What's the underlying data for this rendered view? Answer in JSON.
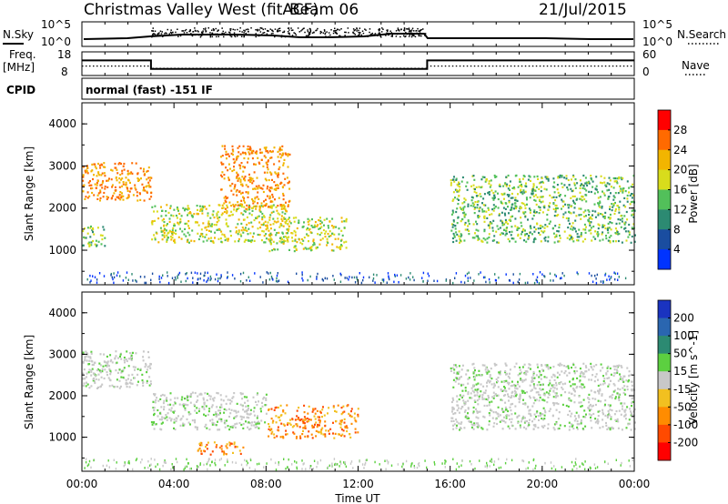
{
  "header": {
    "title": "Christmas Valley West (fitACF)",
    "beam": "Beam 06",
    "date": "21/Jul/2015"
  },
  "status_panel": {
    "nsky_label": "N.Sky",
    "nsearch_label": "N.Search",
    "noise_tick_hi": "10^5",
    "noise_tick_lo": "10^0",
    "freq_label_1": "Freq.",
    "freq_label_2": "[MHz]",
    "freq_ticks": [
      "18",
      "8"
    ],
    "nave_label": "Nave",
    "nave_ticks": [
      "60",
      "0"
    ],
    "cpid_label": "CPID",
    "cpid_text": "normal (fast) -151 IF",
    "freq_mhz_segments": [
      {
        "from": "00:00",
        "to": "03:00",
        "value": 14.4
      },
      {
        "from": "03:00",
        "to": "15:00",
        "value": 10.8
      },
      {
        "from": "15:00",
        "to": "24:00",
        "value": 14.4
      }
    ],
    "nave_segments": [
      {
        "from": "00:00",
        "to": "03:00",
        "value": 24
      },
      {
        "from": "03:00",
        "to": "15:00",
        "value": 18
      },
      {
        "from": "15:00",
        "to": "24:00",
        "value": 24
      }
    ]
  },
  "chart_data": [
    {
      "type": "heatmap",
      "parameter": "Power",
      "ylabel": "Slant Range [km]",
      "ylim": [
        180,
        4500
      ],
      "yticks": [
        "1000",
        "2000",
        "3000",
        "4000"
      ],
      "xlim": [
        "00:00",
        "24:00"
      ],
      "colorbar_label": "Power [dB]",
      "colorbar_ticks": [
        "28",
        "24",
        "20",
        "16",
        "12",
        "8",
        "4"
      ],
      "colorbar_colors": [
        "#ff0000",
        "#ff6a00",
        "#f2b500",
        "#d8dc1c",
        "#52c05a",
        "#2c8a72",
        "#1a4da0",
        "#0033ff"
      ],
      "echo_regions": [
        {
          "from": "00:00",
          "to": "03:00",
          "range_km": [
            2200,
            3100
          ],
          "value_db": 22
        },
        {
          "from": "00:00",
          "to": "01:00",
          "range_km": [
            1100,
            1600
          ],
          "value_db": 12
        },
        {
          "from": "03:00",
          "to": "09:00",
          "range_km": [
            1200,
            2100
          ],
          "value_db": 18
        },
        {
          "from": "06:00",
          "to": "09:00",
          "range_km": [
            2000,
            3500
          ],
          "value_db": 22
        },
        {
          "from": "08:00",
          "to": "11:30",
          "range_km": [
            1000,
            1800
          ],
          "value_db": 18
        },
        {
          "from": "16:00",
          "to": "24:00",
          "range_km": [
            1200,
            2800
          ],
          "value_db": 12
        }
      ]
    },
    {
      "type": "heatmap",
      "parameter": "Velocity",
      "ylabel": "Slant Range [km]",
      "ylim": [
        180,
        4500
      ],
      "yticks": [
        "1000",
        "2000",
        "3000",
        "4000"
      ],
      "xlim": [
        "00:00",
        "24:00"
      ],
      "xticks": [
        "00:00",
        "04:00",
        "08:00",
        "12:00",
        "16:00",
        "20:00",
        "00:00"
      ],
      "xlabel": "Time UT",
      "colorbar_label": "Velocity [m s^-1]",
      "colorbar_ticks": [
        "200",
        "100",
        "50",
        "15",
        "-15",
        "-50",
        "-100",
        "-200"
      ],
      "colorbar_colors": [
        "#1a33c0",
        "#2a66b0",
        "#2c8a72",
        "#5cd040",
        "#c8c8c8",
        "#f2c020",
        "#ff8c00",
        "#ff4a00",
        "#ff0000"
      ],
      "echo_regions": [
        {
          "from": "00:00",
          "to": "03:00",
          "range_km": [
            2200,
            3100
          ],
          "velocity_ms": 0
        },
        {
          "from": "03:00",
          "to": "08:00",
          "range_km": [
            1200,
            2100
          ],
          "velocity_ms": 0
        },
        {
          "from": "08:00",
          "to": "12:00",
          "range_km": [
            1000,
            1800
          ],
          "velocity_ms": -60
        },
        {
          "from": "05:00",
          "to": "07:00",
          "range_km": [
            600,
            900
          ],
          "velocity_ms": -60
        },
        {
          "from": "16:00",
          "to": "24:00",
          "range_km": [
            1200,
            2800
          ],
          "velocity_ms": 0
        }
      ]
    }
  ]
}
